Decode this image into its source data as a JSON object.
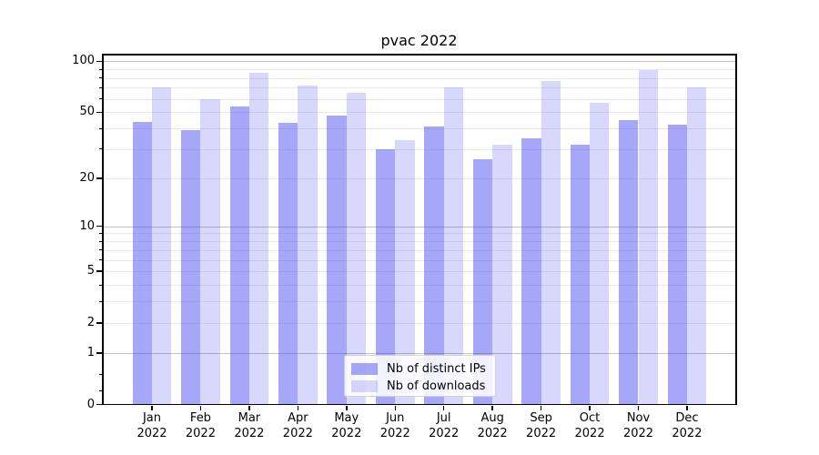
{
  "title": "pvac 2022",
  "chart_data": {
    "type": "bar",
    "title": "pvac 2022",
    "categories": [
      "Jan 2022",
      "Feb 2022",
      "Mar 2022",
      "Apr 2022",
      "May 2022",
      "Jun 2022",
      "Jul 2022",
      "Aug 2022",
      "Sep 2022",
      "Oct 2022",
      "Nov 2022",
      "Dec 2022"
    ],
    "series": [
      {
        "name": "Nb of distinct IPs",
        "color": "#3C3CF5",
        "alpha": 0.45,
        "values": [
          44,
          39,
          54,
          43,
          48,
          30,
          41,
          26,
          35,
          32,
          45,
          42
        ]
      },
      {
        "name": "Nb of downloads",
        "color": "#3C3CF5",
        "alpha": 0.2,
        "values": [
          70,
          60,
          86,
          72,
          65,
          34,
          70,
          32,
          77,
          57,
          89,
          70
        ]
      }
    ],
    "xlabel": "",
    "ylabel": "",
    "y_axis": {
      "scale": "log(v+1)",
      "range": [
        0,
        112
      ],
      "tick_values": [
        100,
        50,
        20,
        10,
        5,
        2,
        1,
        0
      ],
      "tick_labels": [
        "100",
        "50",
        "20",
        "10",
        "5",
        "2",
        "1",
        "0"
      ],
      "major_gridline_values": [
        1,
        10,
        100
      ],
      "minor_gridline_values": [
        2,
        3,
        4,
        5,
        6,
        7,
        8,
        9,
        20,
        30,
        40,
        50,
        60,
        70,
        80,
        90
      ],
      "minor_tick_values": [
        0.2,
        0.5,
        3,
        4,
        6,
        7,
        8,
        9,
        30,
        40,
        60,
        70,
        80,
        90
      ]
    },
    "grid": true,
    "legend": {
      "position": "lower center",
      "entries": [
        "Nb of distinct IPs",
        "Nb of downloads"
      ]
    }
  },
  "colors": {
    "background": "#FFFFFF",
    "bar_base": "#3C3CF5",
    "minor_grid": "#E9E9E9",
    "major_grid": "#C3C3C3",
    "spine": "#000000",
    "text": "#000000"
  }
}
